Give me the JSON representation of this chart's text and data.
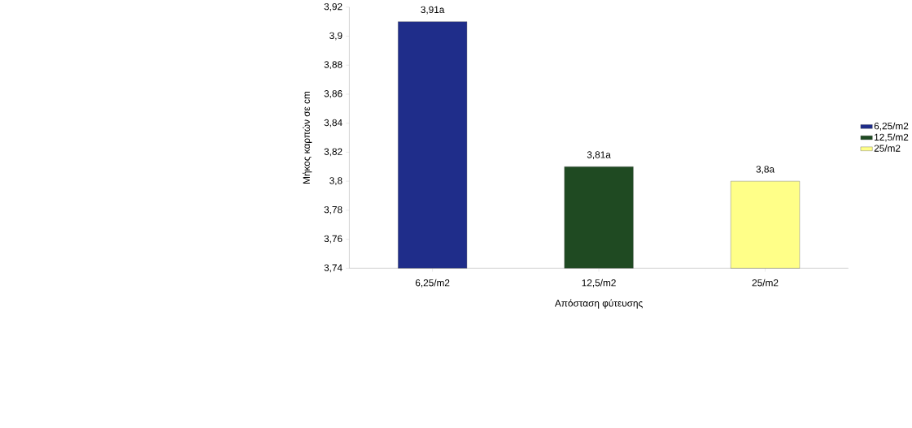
{
  "chart_data": {
    "type": "bar",
    "xlabel": "Απόσταση φύτευσης",
    "ylabel": "Μήκος καρπών σε cm",
    "categories": [
      "6,25/m2",
      "12,5/m2",
      "25/m2"
    ],
    "series": [
      {
        "name": "6,25/m2",
        "color": "#1f2d8a",
        "values": [
          3.91,
          null,
          null
        ],
        "value_labels": [
          "3,91a",
          null,
          null
        ]
      },
      {
        "name": "12,5/m2",
        "color": "#1f4a22",
        "values": [
          null,
          3.81,
          null
        ],
        "value_labels": [
          null,
          "3,81a",
          null
        ]
      },
      {
        "name": "25/m2",
        "color": "#ffff88",
        "values": [
          null,
          null,
          3.8
        ],
        "value_labels": [
          null,
          null,
          "3,8a"
        ]
      }
    ],
    "ylim": [
      3.74,
      3.92
    ],
    "yticks": [
      {
        "value": 3.74,
        "label": "3,74"
      },
      {
        "value": 3.76,
        "label": "3,76"
      },
      {
        "value": 3.78,
        "label": "3,78"
      },
      {
        "value": 3.8,
        "label": "3,8"
      },
      {
        "value": 3.82,
        "label": "3,82"
      },
      {
        "value": 3.84,
        "label": "3,84"
      },
      {
        "value": 3.86,
        "label": "3,86"
      },
      {
        "value": 3.88,
        "label": "3,88"
      },
      {
        "value": 3.9,
        "label": "3,9"
      },
      {
        "value": 3.92,
        "label": "3,92"
      }
    ],
    "grid": false,
    "legend": "right"
  }
}
